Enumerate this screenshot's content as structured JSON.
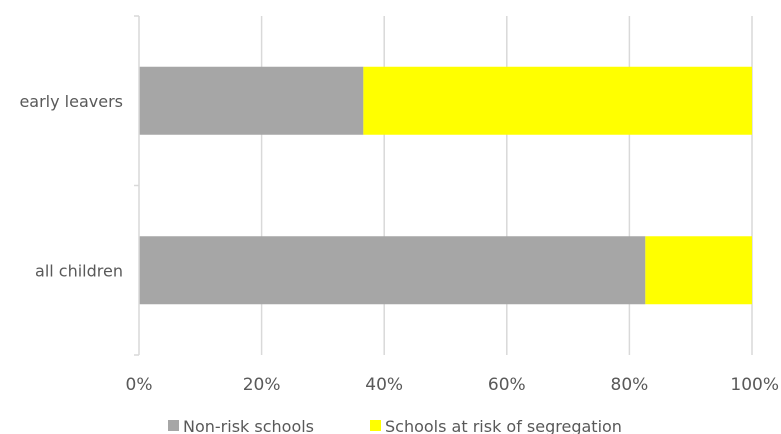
{
  "chart_data": {
    "type": "bar",
    "orientation": "horizontal",
    "stacked": "percent",
    "categories": [
      "early leavers",
      "all children"
    ],
    "series": [
      {
        "name": "Non-risk schools",
        "color": "#a6a6a6",
        "values": [
          36.6,
          82.6
        ]
      },
      {
        "name": "Schools at risk of segregation",
        "color": "#ffff00",
        "values": [
          63.4,
          17.4
        ]
      }
    ],
    "x_ticks": [
      "0%",
      "20%",
      "40%",
      "60%",
      "80%",
      "100%"
    ],
    "xlim": [
      0,
      100
    ],
    "grid": true,
    "legend_position": "bottom"
  }
}
